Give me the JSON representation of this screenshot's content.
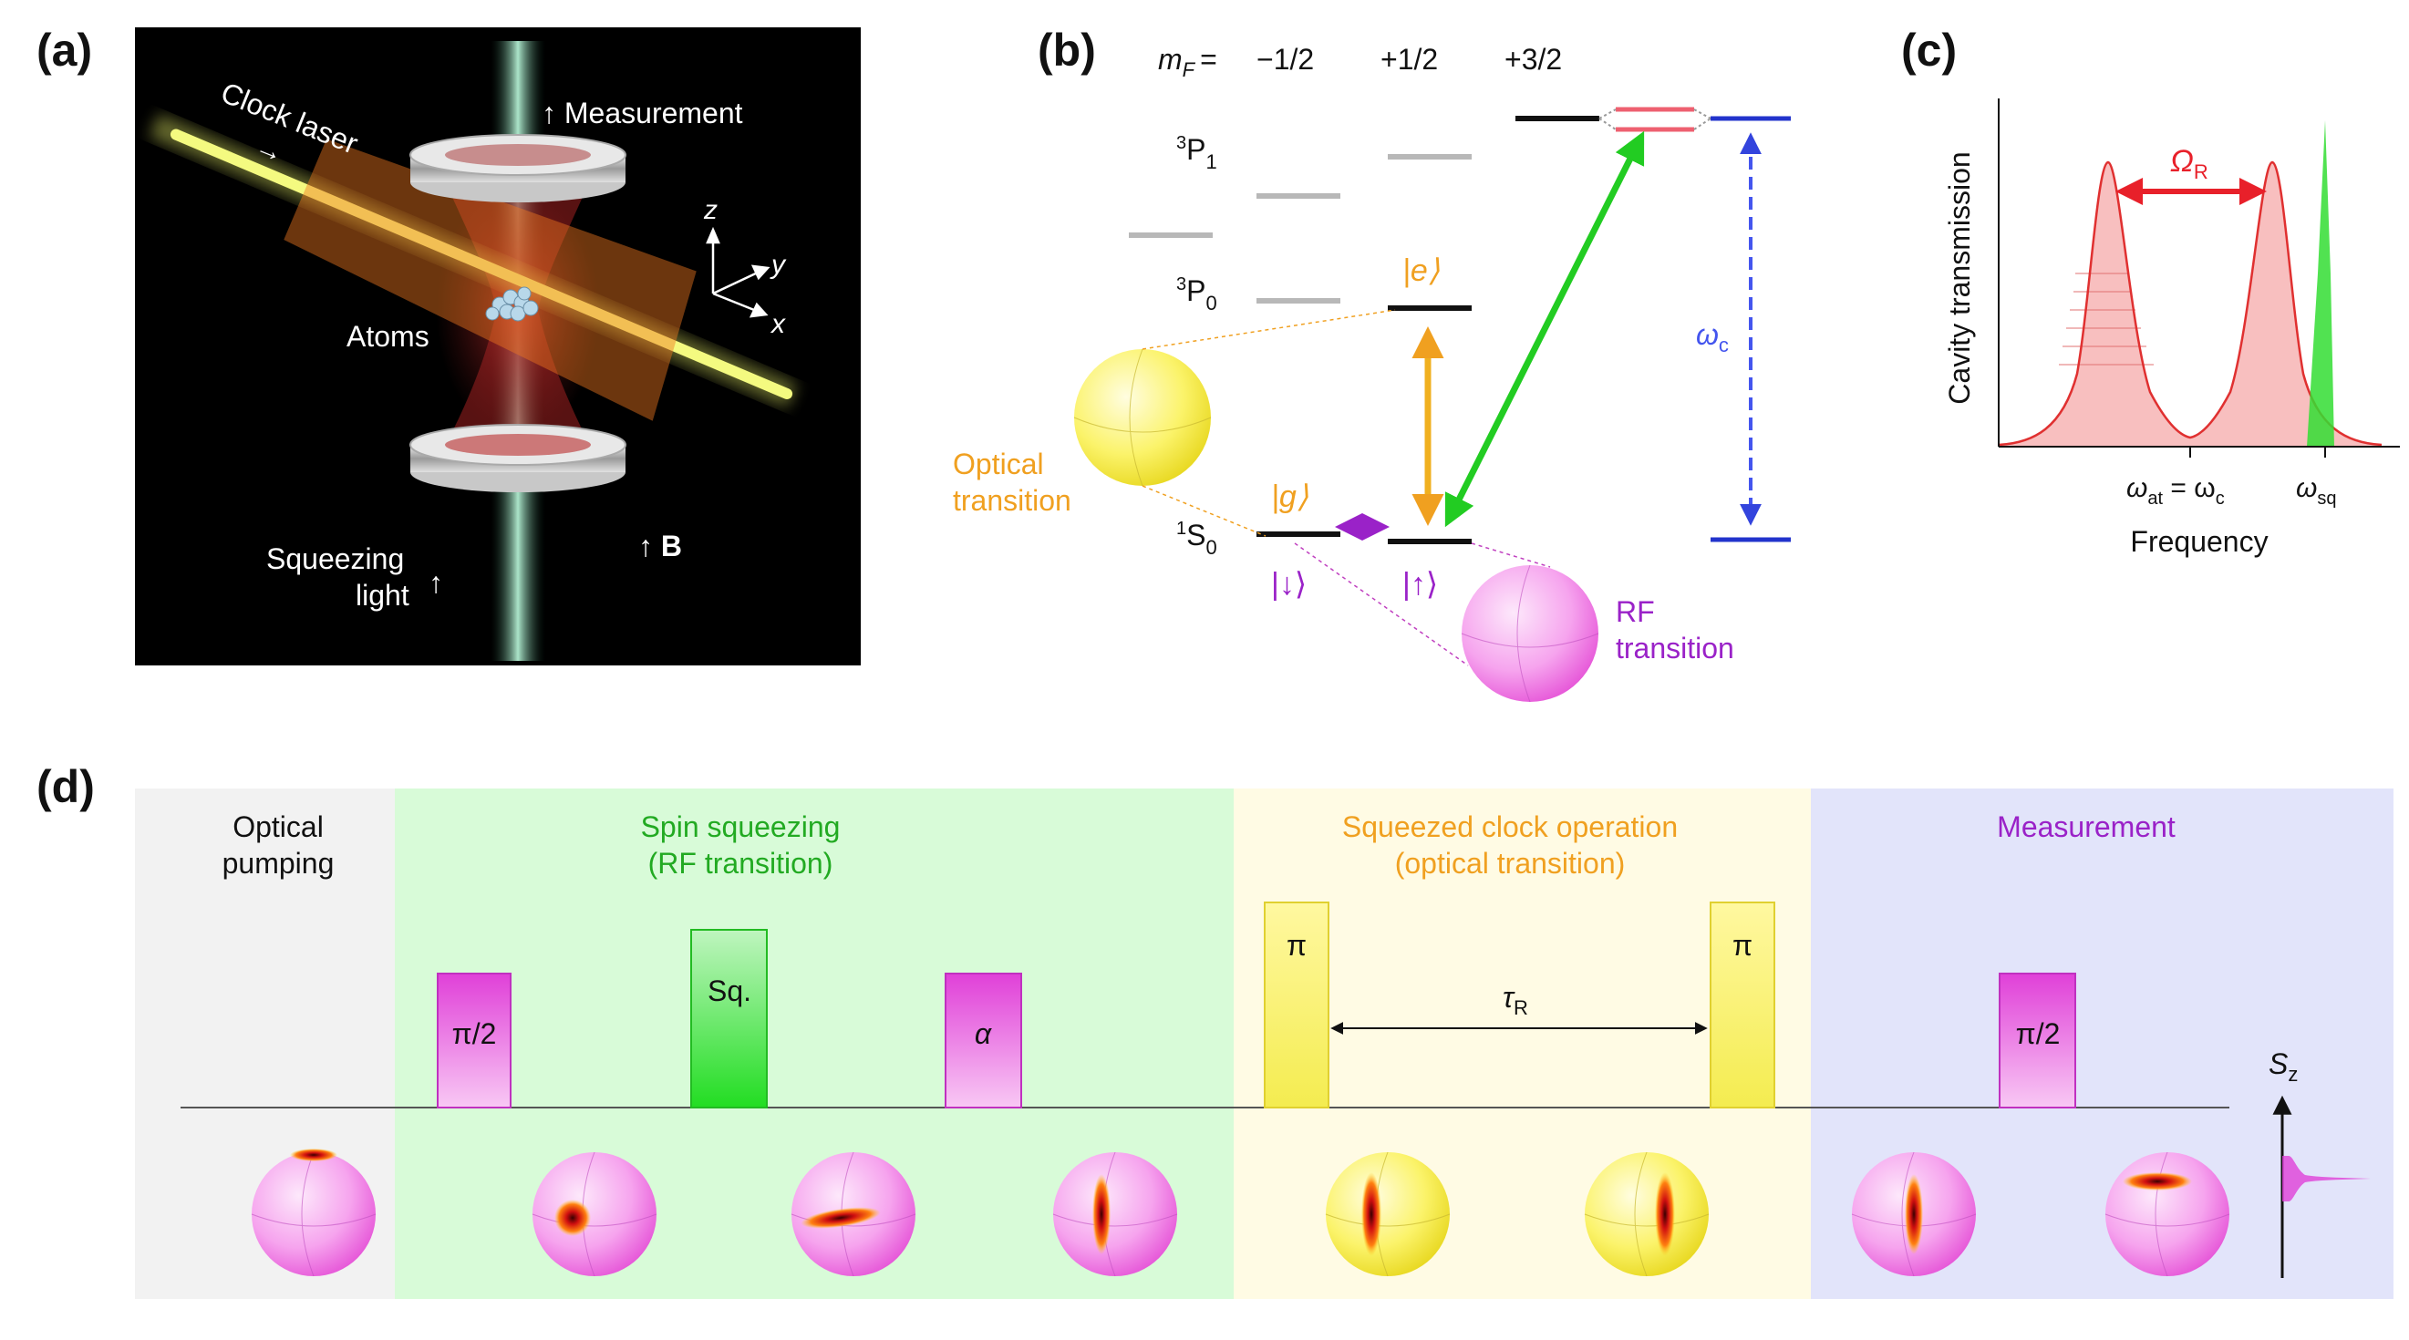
{
  "panel_labels": {
    "a": "(a)",
    "b": "(b)",
    "c": "(c)",
    "d": "(d)"
  },
  "panel_a": {
    "clock_laser": "Clock laser",
    "measurement": "↑ Measurement",
    "atoms": "Atoms",
    "squeezing_1": "Squeezing",
    "squeezing_2": "light",
    "squeezing_arrow": "↑",
    "b_field": "↑ B",
    "axis_z": "z",
    "axis_y": "y",
    "axis_x": "x",
    "laser_arrow": "→"
  },
  "panel_b": {
    "mf_label": "m",
    "mf_sub": "F",
    "mf_eq": "=",
    "mf_values": [
      "−1/2",
      "+1/2",
      "+3/2"
    ],
    "level_3p1": "P",
    "level_3p1_sup": "3",
    "level_3p1_sub": "1",
    "level_3p0": "P",
    "level_3p0_sup": "3",
    "level_3p0_sub": "0",
    "level_1s0": "S",
    "level_1s0_sup": "1",
    "level_1s0_sub": "0",
    "ket_e": "|e⟩",
    "ket_g": "|g⟩",
    "ket_down": "|↓⟩",
    "ket_up": "|↑⟩",
    "omega_c": "ω",
    "omega_c_sub": "c",
    "optical_1": "Optical",
    "optical_2": "transition",
    "rf_1": "RF",
    "rf_2": "transition"
  },
  "panel_c": {
    "ylabel": "Cavity transmission",
    "xlabel": "Frequency",
    "omega_r": "Ω",
    "omega_r_sub": "R",
    "tick_at_1": "ω",
    "tick_at_sub1": "at",
    "tick_at_eq": " = ω",
    "tick_at_sub2": "c",
    "tick_sq": "ω",
    "tick_sq_sub": "sq"
  },
  "panel_d": {
    "stages": [
      {
        "title_1": "Optical",
        "title_2": "pumping"
      },
      {
        "title_1": "Spin squeezing",
        "title_2": "(RF transition)"
      },
      {
        "title_1": "Squeezed clock operation",
        "title_2": "(optical transition)"
      },
      {
        "title_1": "Measurement",
        "title_2": ""
      }
    ],
    "pulses": [
      "π/2",
      "Sq.",
      "α",
      "π",
      "π",
      "π/2"
    ],
    "tau": "τ",
    "tau_sub": "R",
    "sz": "S",
    "sz_sub": "z"
  },
  "colors": {
    "orange": "#f0a020",
    "purple": "#9a22c8",
    "blue": "#2233cc",
    "green": "#22cc22",
    "red": "#e8202a",
    "magenta": "#e040d8"
  }
}
